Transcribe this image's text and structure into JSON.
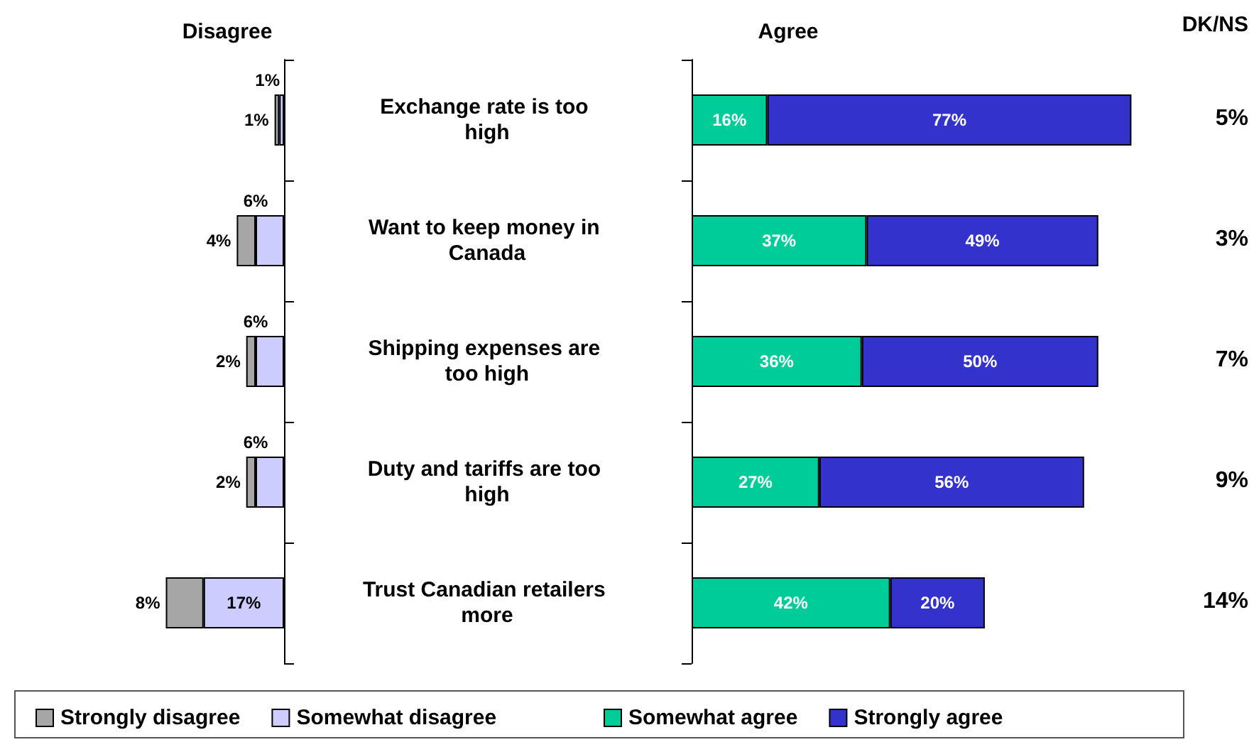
{
  "chart_data": [
    {
      "type": "bar",
      "title": "Disagree",
      "orientation": "horizontal",
      "stacked": true,
      "legend": "bottom",
      "tick_labels": false,
      "categories": [
        "Exchange rate is too high",
        "Want to keep money in Canada",
        "Shipping expenses are too high",
        "Duty and tariffs are too high",
        "Trust Canadian retailers more"
      ],
      "series": [
        {
          "name": "Somewhat disagree",
          "color": "#ccccff",
          "values": [
            1,
            6,
            6,
            6,
            17
          ],
          "value_labels": [
            "1%",
            "6%",
            "6%",
            "6%",
            "17%"
          ]
        },
        {
          "name": "Strongly disagree",
          "color": "#a6a6a6",
          "values": [
            1,
            4,
            2,
            2,
            8
          ],
          "value_labels": [
            "1%",
            "4%",
            "2%",
            "2%",
            "8%"
          ]
        }
      ]
    },
    {
      "type": "bar",
      "title": "Agree",
      "orientation": "horizontal",
      "stacked": true,
      "legend": "bottom",
      "tick_labels": "y",
      "categories": [
        "Exchange rate is too high",
        "Want to keep money in Canada",
        "Shipping expenses are too high",
        "Duty and tariffs are too high",
        "Trust Canadian retailers more"
      ],
      "series": [
        {
          "name": "Somewhat agree",
          "color": "#00cc99",
          "values": [
            16,
            37,
            36,
            27,
            42
          ],
          "value_labels": [
            "16%",
            "37%",
            "36%",
            "27%",
            "42%"
          ]
        },
        {
          "name": "Strongly agree",
          "color": "#3333cc",
          "values": [
            77,
            49,
            50,
            56,
            20
          ],
          "value_labels": [
            "77%",
            "49%",
            "50%",
            "56%",
            "20%"
          ]
        }
      ],
      "annotations": [
        "DK/NS",
        "5%",
        "3%",
        "7%",
        "9%",
        "14%"
      ]
    }
  ]
}
